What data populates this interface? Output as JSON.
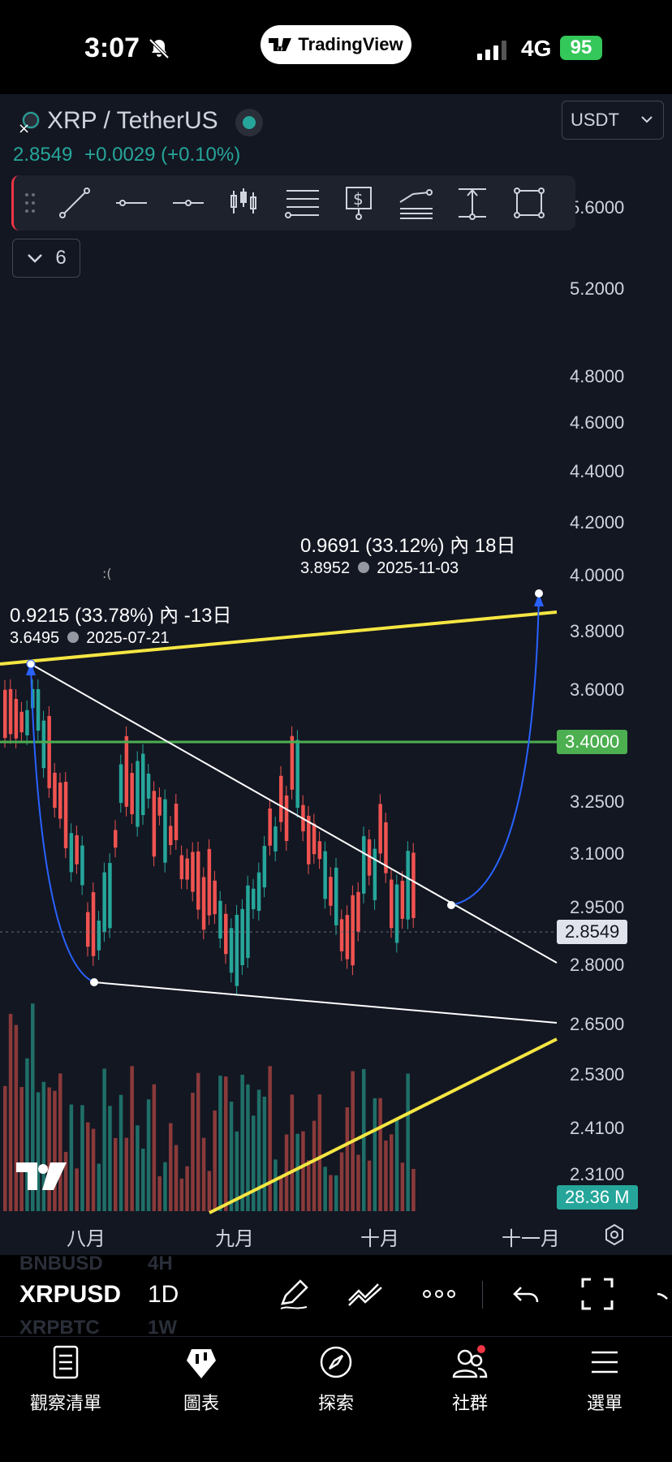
{
  "status_bar": {
    "time": "3:07",
    "app_pill": "TradingView",
    "network": "4G",
    "battery": "95"
  },
  "header": {
    "symbol_title": "XRP / TetherUS",
    "price": "2.8549",
    "change": "+0.0029 (+0.10%)",
    "currency": "USDT",
    "indicators_count": "6"
  },
  "price_axis": {
    "labels": [
      "5.6000",
      "5.2000",
      "4.8000",
      "4.6000",
      "4.4000",
      "4.2000",
      "4.0000",
      "3.8000",
      "3.6000",
      "3.2500",
      "3.1000",
      "2.9500",
      "2.8000",
      "2.6500",
      "2.5300",
      "2.4100",
      "2.3100"
    ],
    "level_tag": "3.4000",
    "last_price_tag": "2.8549",
    "volume_tag": "28.36 M"
  },
  "time_axis": {
    "labels": [
      "八月",
      "九月",
      "十月",
      "十一月"
    ]
  },
  "annotations": {
    "left_main": "0.9215 (33.78%) 內 -13日",
    "left_sub_price": "3.6495",
    "left_sub_date": "2025-07-21",
    "right_main": "0.9691 (33.12%) 內 18日",
    "right_sub_price": "3.8952",
    "right_sub_date": "2025-11-03"
  },
  "symbol_bar": {
    "current_symbol": "XRPUSD",
    "current_timeframe": "1D",
    "ghost_above_symbol": "BNBUSD",
    "ghost_above_tf": "4H",
    "ghost_below_symbol": "XRPBTC",
    "ghost_below_tf": "1W"
  },
  "tabs": [
    {
      "label": "觀察清單",
      "icon": "watchlist-icon"
    },
    {
      "label": "圖表",
      "icon": "chart-icon"
    },
    {
      "label": "探索",
      "icon": "compass-icon"
    },
    {
      "label": "社群",
      "icon": "community-icon"
    },
    {
      "label": "選單",
      "icon": "menu-icon"
    }
  ],
  "colors": {
    "up": "#26a69a",
    "down": "#ef5350",
    "background": "#131722",
    "trendline_yellow": "#f5e642",
    "level_green": "#4caf50",
    "curve_blue": "#2962ff"
  }
}
